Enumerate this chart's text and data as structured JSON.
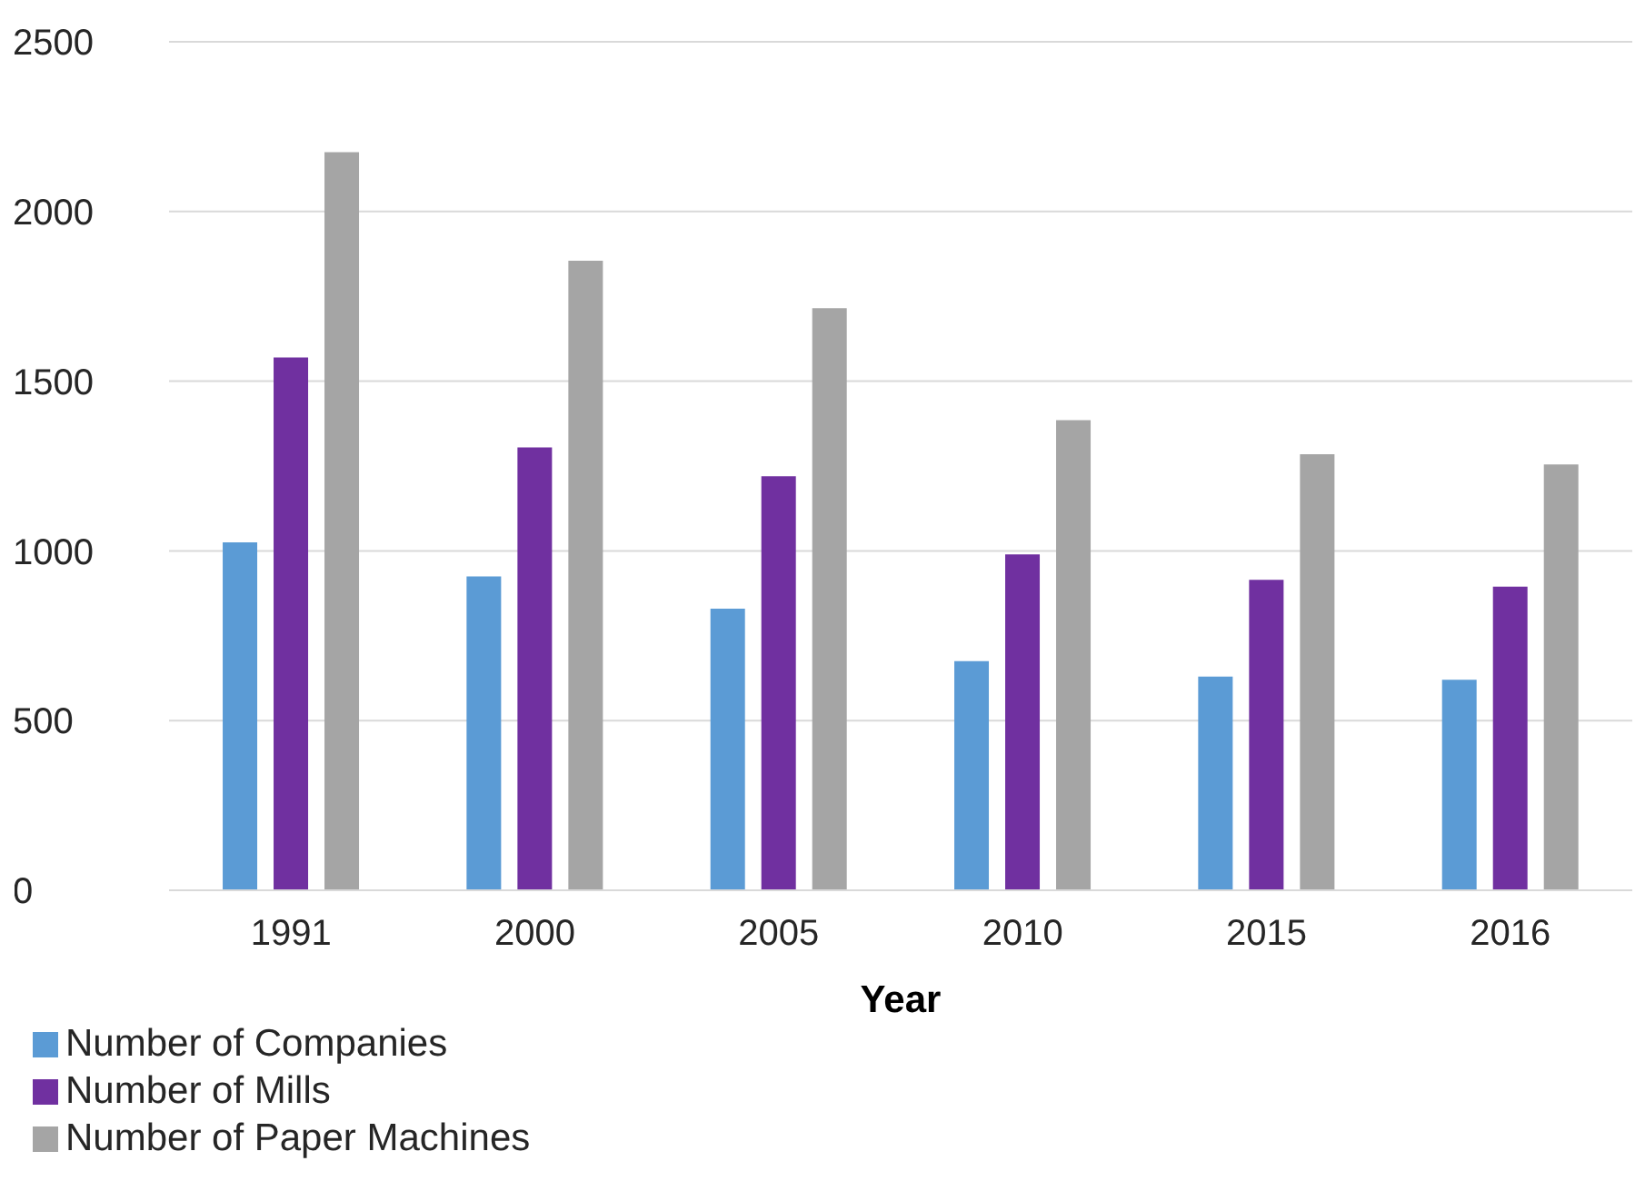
{
  "chart_data": {
    "type": "bar",
    "xlabel": "Year",
    "categories": [
      "1991",
      "2000",
      "2005",
      "2010",
      "2015",
      "2016"
    ],
    "series": [
      {
        "name": "Number of Companies",
        "color": "#5b9bd5",
        "values": [
          1025,
          925,
          830,
          675,
          630,
          620
        ]
      },
      {
        "name": "Number of Mills",
        "color": "#7030a0",
        "values": [
          1570,
          1305,
          1220,
          990,
          915,
          895
        ]
      },
      {
        "name": "Number of Paper Machines",
        "color": "#a5a5a5",
        "values": [
          2175,
          1855,
          1715,
          1385,
          1285,
          1255
        ]
      }
    ],
    "ylim": [
      0,
      2500
    ],
    "yticks": [
      0,
      500,
      1000,
      1500,
      2000,
      2500
    ],
    "grid": "y",
    "legend": "bottom left"
  }
}
